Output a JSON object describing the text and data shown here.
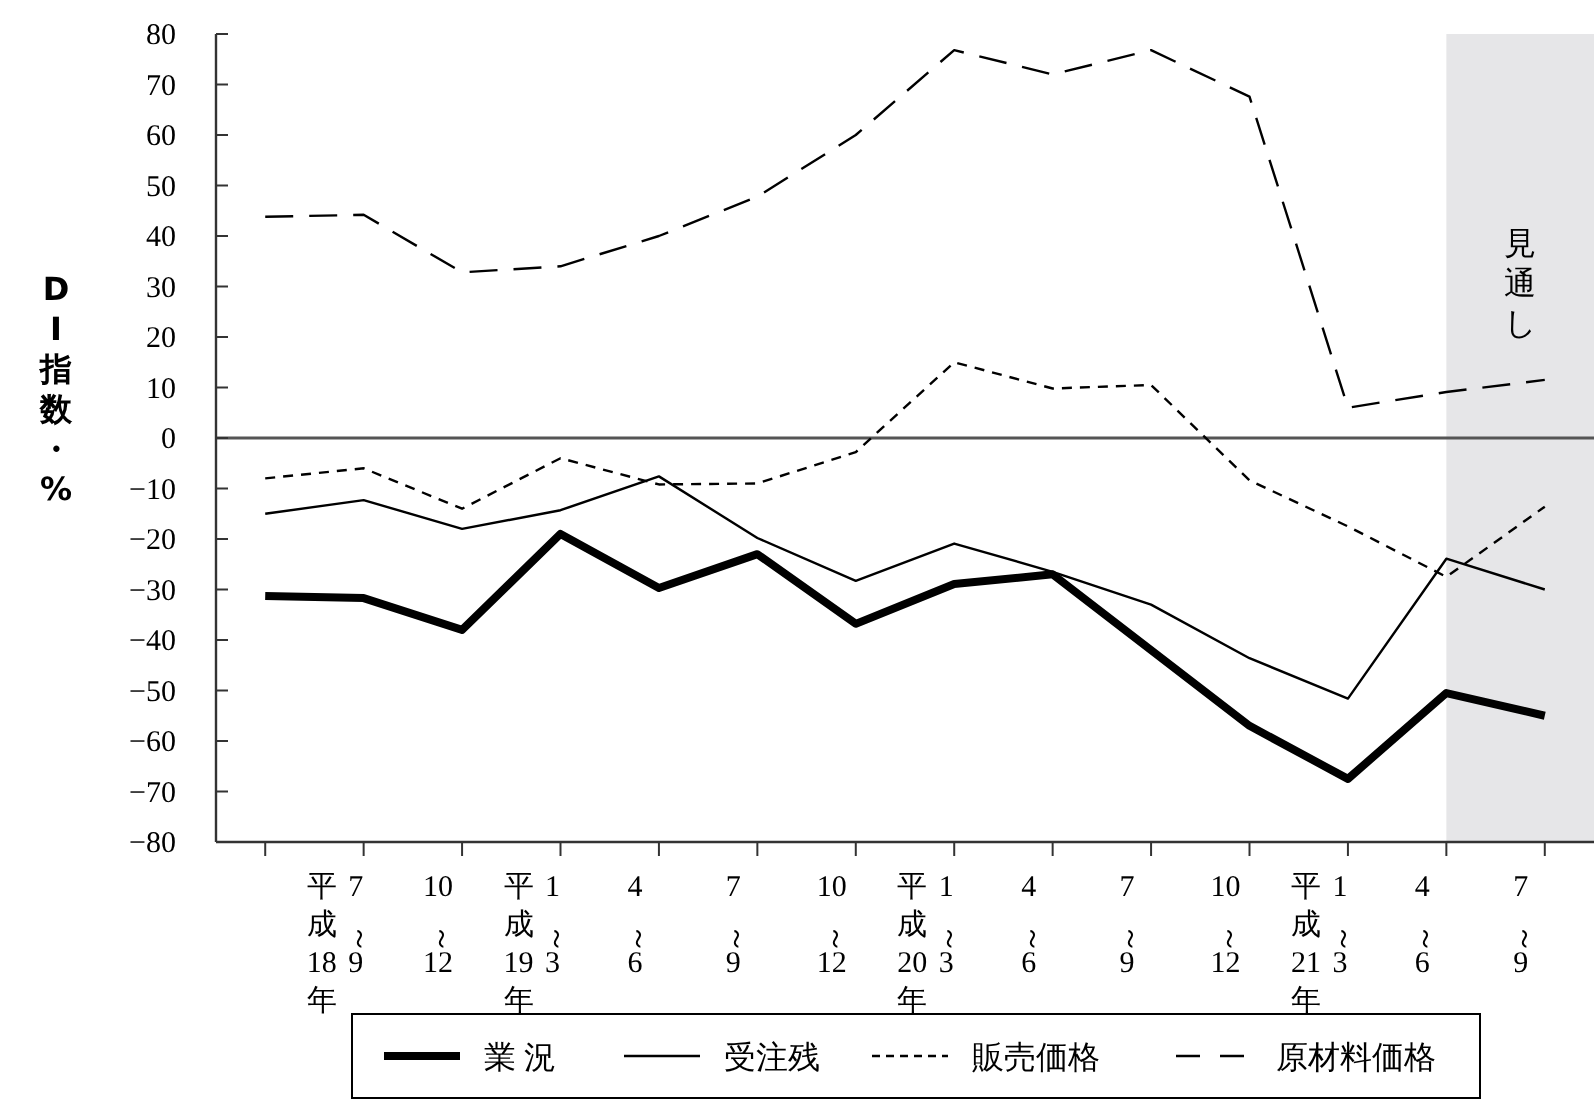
{
  "chart_data": {
    "type": "line",
    "ylabel": "DI指数・%",
    "categories": [
      null,
      "平成18年7～9",
      "10～12",
      "平成19年1～3",
      "4～6",
      "7～9",
      "10～12",
      "平成20年1～3",
      "4～6",
      "7～9",
      "10～12",
      "平成21年1～3",
      "4～6",
      "7～9"
    ],
    "series": [
      {
        "name": "業 況",
        "color": "#000000",
        "line_style": "solid",
        "values": [
          -31.3,
          -31.7,
          -38,
          -19,
          -29.7,
          -23,
          -36.8,
          -28.9,
          -27,
          -42,
          -57,
          -67.5,
          -50.5,
          -55
        ]
      },
      {
        "name": "受注残",
        "color": "#000000",
        "line_style": "solid",
        "values": [
          -15,
          -12.3,
          -18,
          -14.3,
          -7.6,
          -19.8,
          -28.3,
          -20.9,
          -26.5,
          -33,
          -43.6,
          -51.6,
          -23.9,
          -30
        ]
      },
      {
        "name": "販売価格",
        "color": "#000000",
        "line_style": "dotted",
        "values": [
          -8,
          -6,
          -14,
          -4,
          -9.2,
          -9,
          -2.8,
          15,
          9.8,
          10.5,
          -8.4,
          -17.5,
          -27.5,
          -13.6
        ]
      },
      {
        "name": "原材料価格",
        "color": "#000000",
        "line_style": "dashed",
        "values": [
          43.8,
          44.2,
          32.8,
          34,
          40,
          47.8,
          60,
          76.8,
          72,
          76.8,
          67.6,
          6,
          9.1,
          11.5
        ]
      }
    ],
    "ylim": [
      -80,
      80
    ],
    "yticks": [
      80,
      70,
      60,
      50,
      40,
      30,
      20,
      10,
      0,
      {
        "value": -10,
        "label": "−10"
      },
      {
        "value": -20,
        "label": "−20"
      },
      {
        "value": -30,
        "label": "−30"
      },
      {
        "value": -40,
        "label": "−40"
      },
      {
        "value": -50,
        "label": "−50"
      },
      {
        "value": -60,
        "label": "−60"
      },
      {
        "value": -70,
        "label": "−70"
      },
      {
        "value": -80,
        "label": "−80"
      }
    ],
    "ref_lines": [
      {
        "axis": "y",
        "value": 0,
        "color": "#555555"
      }
    ],
    "annotations": [
      "見通し"
    ],
    "grid": false,
    "legend": "bottom",
    "marker": "none"
  }
}
